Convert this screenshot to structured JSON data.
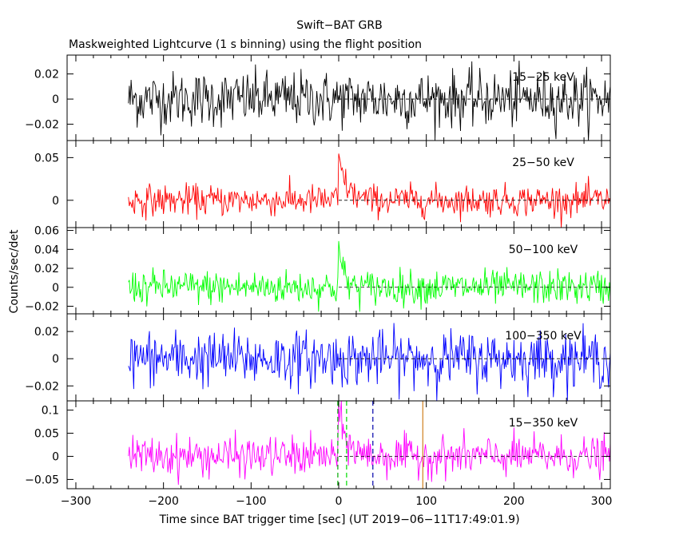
{
  "figure": {
    "title": "Swift−BAT GRB",
    "subtitle": "Maskweighted Lightcurve (1 s binning) using the flight position",
    "xlabel": "Time since BAT trigger time [sec] (UT 2019−06−11T17:49:01.9)",
    "ylabel": "Counts/sec/det"
  },
  "chart_data": [
    {
      "type": "line",
      "name": "15-25 keV",
      "label": "15−25 keV",
      "color": "#000000",
      "xlim": [
        -310,
        310
      ],
      "ylim": [
        -0.033,
        0.035
      ],
      "yticks": [
        -0.02,
        0,
        0.02
      ],
      "yticklabels": [
        "−0.02",
        "0",
        "0.02"
      ],
      "x_start": -240,
      "x_end": 310,
      "binning_s": 1,
      "noise_sigma": 0.011,
      "pulse": null,
      "grid": false
    },
    {
      "type": "line",
      "name": "25-50 keV",
      "label": "25−50 keV",
      "color": "#ff0000",
      "xlim": [
        -310,
        310
      ],
      "ylim": [
        -0.032,
        0.07
      ],
      "yticks": [
        0,
        0.05
      ],
      "yticklabels": [
        "0",
        "0.05"
      ],
      "x_start": -240,
      "x_end": 310,
      "binning_s": 1,
      "noise_sigma": 0.009,
      "pulse": {
        "t0": 0,
        "peak": 0.048,
        "decay_s": 9
      },
      "grid": false
    },
    {
      "type": "line",
      "name": "50-100 keV",
      "label": "50−100 keV",
      "color": "#00ff00",
      "xlim": [
        -310,
        310
      ],
      "ylim": [
        -0.028,
        0.063
      ],
      "yticks": [
        -0.02,
        0,
        0.02,
        0.04,
        0.06
      ],
      "yticklabels": [
        "−0.02",
        "0",
        "0.02",
        "0.04",
        "0.06"
      ],
      "x_start": -240,
      "x_end": 310,
      "binning_s": 1,
      "noise_sigma": 0.009,
      "pulse": {
        "t0": 0,
        "peak": 0.045,
        "decay_s": 5
      },
      "grid": false
    },
    {
      "type": "line",
      "name": "100-350 keV",
      "label": "100−350 keV",
      "color": "#0000ff",
      "xlim": [
        -310,
        310
      ],
      "ylim": [
        -0.031,
        0.033
      ],
      "yticks": [
        -0.02,
        0,
        0.02
      ],
      "yticklabels": [
        "−0.02",
        "0",
        "0.02"
      ],
      "x_start": -240,
      "x_end": 310,
      "binning_s": 1,
      "noise_sigma": 0.01,
      "pulse": null,
      "grid": false
    },
    {
      "type": "line",
      "name": "15-350 keV",
      "label": "15−350 keV",
      "color": "#ff00ff",
      "xlim": [
        -310,
        310
      ],
      "ylim": [
        -0.07,
        0.12
      ],
      "yticks": [
        -0.05,
        0,
        0.05,
        0.1
      ],
      "yticklabels": [
        "−0.05",
        "0",
        "0.05",
        "0.1"
      ],
      "x_start": -240,
      "x_end": 310,
      "binning_s": 1,
      "noise_sigma": 0.021,
      "pulse": {
        "t0": 0,
        "peak": 0.09,
        "decay_s": 10
      },
      "grid": false,
      "markers": [
        {
          "x": -1,
          "color": "#00aa00",
          "dash": true
        },
        {
          "x": 9,
          "color": "#00dd00",
          "dash": true
        },
        {
          "x": 39,
          "color": "#0000aa",
          "dash": true
        },
        {
          "x": 96,
          "color": "#d08020",
          "dash": false
        }
      ]
    }
  ],
  "x_axis": {
    "ticks": [
      -300,
      -200,
      -100,
      0,
      100,
      200,
      300
    ],
    "ticklabels": [
      "−300",
      "−200",
      "−100",
      "0",
      "100",
      "200",
      "300"
    ]
  }
}
